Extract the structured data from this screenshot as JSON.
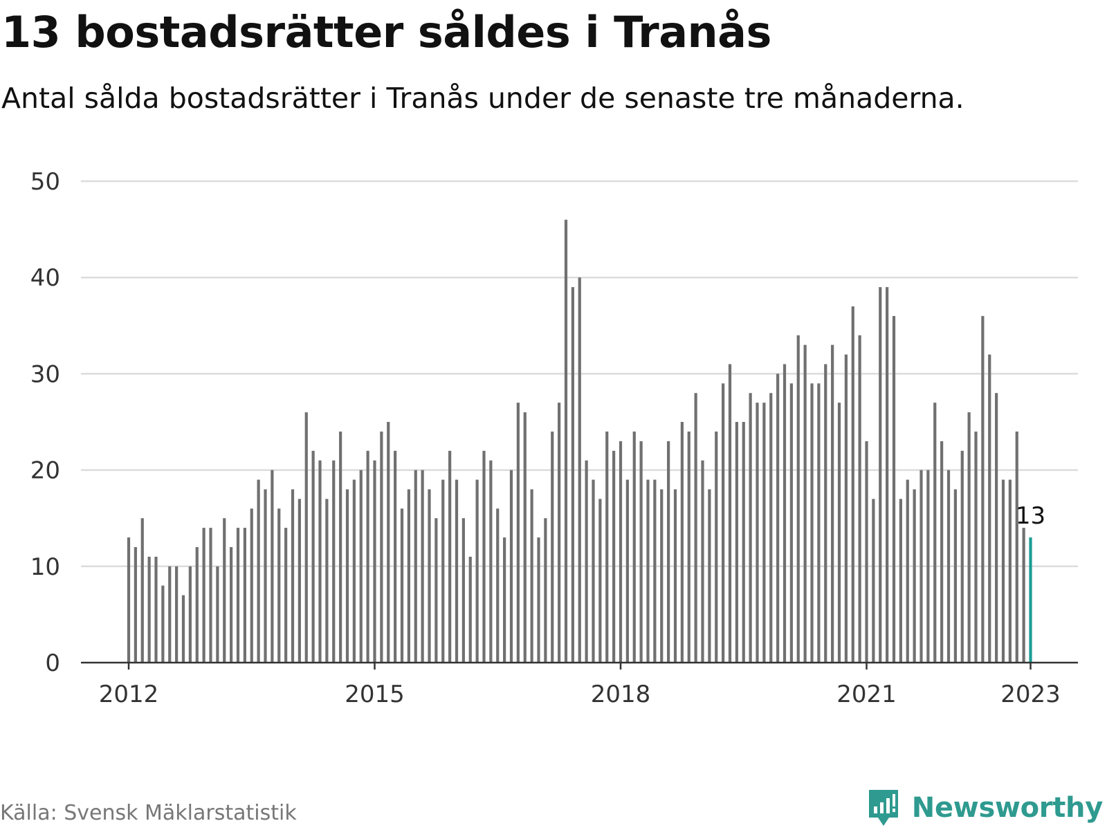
{
  "title": "13 bostadsrätter såldes i Tranås",
  "subtitle": "Antal sålda bostadsrätter i Tranås under de senaste tre månaderna.",
  "source": "Källa: Svensk Mäklarstatistik",
  "brand": {
    "name": "Newsworthy",
    "logo_icon": "chart-speech-bubble-icon",
    "color": "#2f9a8f"
  },
  "colors": {
    "bar": "#707070",
    "highlight": "#1b9c94",
    "grid": "#dcdcdc",
    "axis": "#333333"
  },
  "chart_data": {
    "type": "bar",
    "title": "13 bostadsrätter såldes i Tranås",
    "subtitle": "Antal sålda bostadsrätter i Tranås under de senaste tre månaderna.",
    "xlabel": "",
    "ylabel": "",
    "ylim": [
      0,
      50
    ],
    "yticks": [
      0,
      10,
      20,
      30,
      40,
      50
    ],
    "xticks": [
      "2012",
      "2015",
      "2018",
      "2021",
      "2023"
    ],
    "grid": true,
    "start": "2012-01",
    "frequency": "monthly",
    "highlight": {
      "index": 132,
      "value": 13,
      "label": "13"
    },
    "values": [
      13,
      12,
      15,
      11,
      11,
      8,
      10,
      10,
      7,
      10,
      12,
      14,
      14,
      10,
      15,
      12,
      14,
      14,
      16,
      19,
      18,
      20,
      16,
      14,
      18,
      17,
      26,
      22,
      21,
      17,
      21,
      24,
      18,
      19,
      20,
      22,
      21,
      24,
      25,
      22,
      16,
      18,
      20,
      20,
      18,
      15,
      19,
      22,
      19,
      15,
      11,
      19,
      22,
      21,
      16,
      13,
      20,
      27,
      26,
      18,
      13,
      15,
      24,
      27,
      46,
      39,
      40,
      21,
      19,
      17,
      24,
      22,
      23,
      19,
      24,
      23,
      19,
      19,
      18,
      23,
      18,
      25,
      24,
      28,
      21,
      18,
      24,
      29,
      31,
      25,
      25,
      28,
      27,
      27,
      28,
      30,
      31,
      29,
      34,
      33,
      29,
      29,
      31,
      33,
      27,
      32,
      37,
      34,
      23,
      17,
      39,
      39,
      36,
      17,
      19,
      18,
      20,
      20,
      27,
      23,
      20,
      18,
      22,
      26,
      24,
      36,
      32,
      28,
      19,
      19,
      24,
      14,
      13
    ]
  }
}
